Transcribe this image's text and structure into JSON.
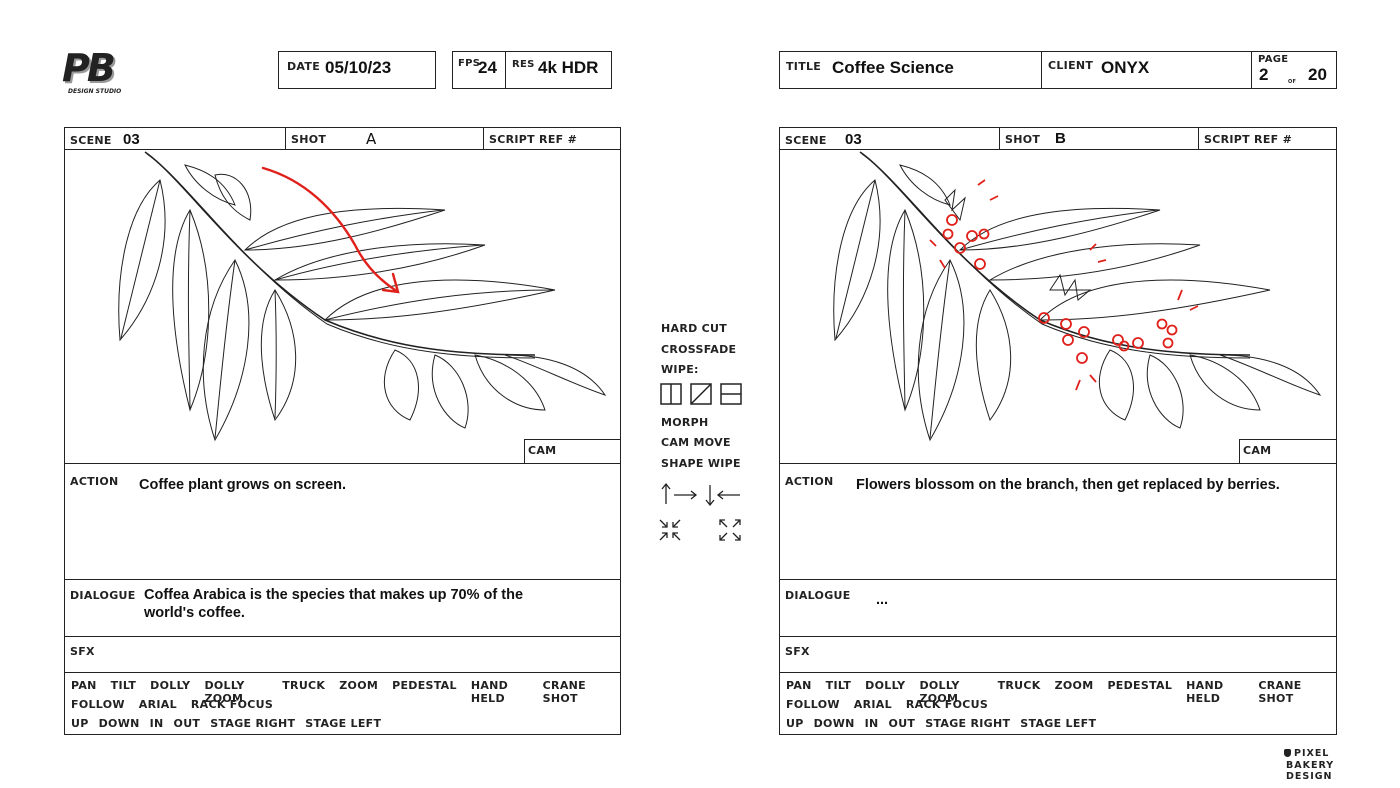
{
  "brand": {
    "logo_letters": "PB",
    "logo_sub": "DESIGN STUDIO",
    "footer_logo": "PIXEL BAKERY DESIGN"
  },
  "header_left": {
    "date_label": "DATE",
    "date": "05/10/23",
    "fps_label": "FPS",
    "fps": "24",
    "res_label": "RES",
    "res": "4k HDR"
  },
  "header_right": {
    "title_label": "TITLE",
    "title": "Coffee Science",
    "client_label": "CLIENT",
    "client": "ONYX",
    "page_label": "PAGE",
    "page": "2",
    "of_label": "OF",
    "total": "20"
  },
  "labels": {
    "scene": "SCENE",
    "shot": "SHOT",
    "script_ref": "SCRIPT REF #",
    "cam": "CAM",
    "action": "ACTION",
    "dialogue": "DIALOGUE",
    "sfx": "SFX"
  },
  "panels": [
    {
      "scene": "03",
      "shot": "A",
      "action": "Coffee plant grows on screen.",
      "dialogue_line1": "Coffea Arabica is the species that makes up 70% of the",
      "dialogue_line2": "world's coffee.",
      "sfx": ""
    },
    {
      "scene": "03",
      "shot": "B",
      "action": "Flowers blossom on the branch, then get replaced by berries.",
      "dialogue_line1": "...",
      "dialogue_line2": "",
      "sfx": ""
    }
  ],
  "camera_moves": {
    "row1": [
      "PAN",
      "TILT",
      "DOLLY",
      "DOLLY ZOOM",
      "TRUCK",
      "ZOOM",
      "PEDESTAL",
      "HAND HELD",
      "CRANE SHOT"
    ],
    "row2": [
      "FOLLOW",
      "ARIAL",
      "RACK FOCUS"
    ],
    "row3": [
      "UP",
      "DOWN",
      "IN",
      "OUT",
      "STAGE RIGHT",
      "STAGE LEFT"
    ]
  },
  "transitions": {
    "hard_cut": "HARD CUT",
    "crossfade": "CROSSFADE",
    "wipe": "WIPE:",
    "morph": "MORPH",
    "cam_move": "CAM MOVE",
    "shape_wipe": "SHAPE WIPE"
  },
  "colors": {
    "annotation_red": "#e0201b",
    "line": "#222222"
  }
}
